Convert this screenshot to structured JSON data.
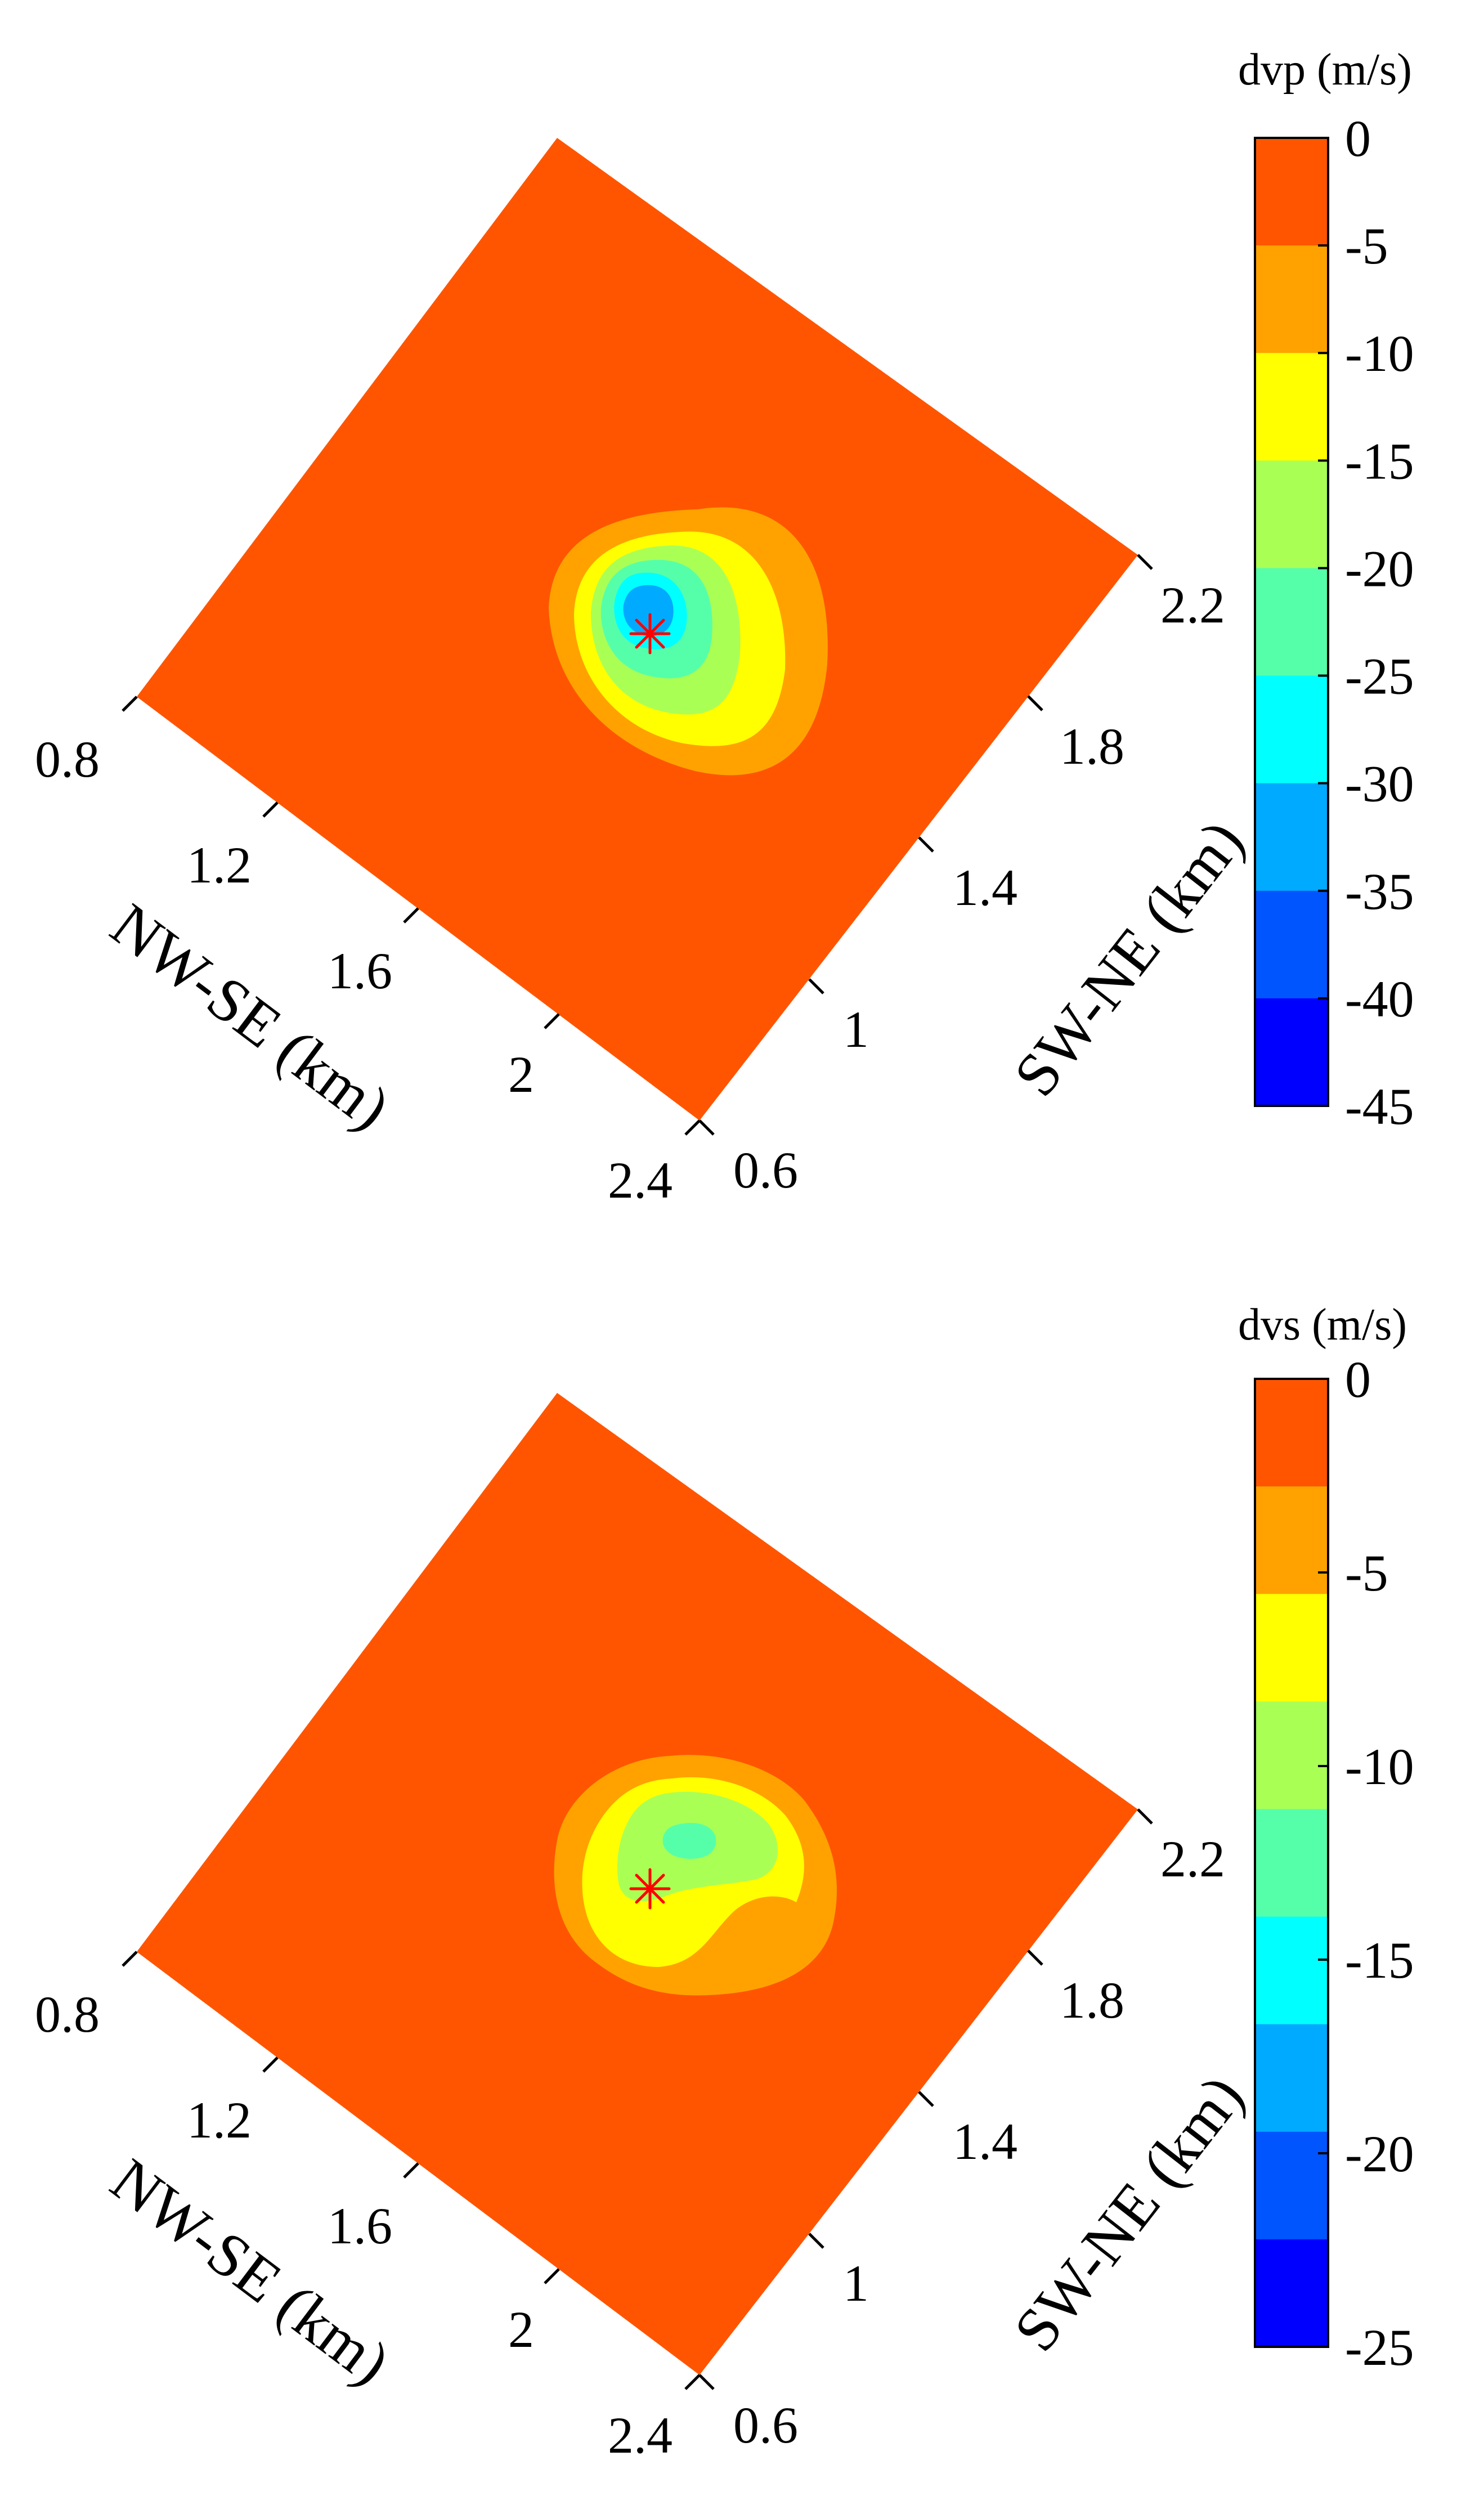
{
  "chart_data": [
    {
      "type": "heatmap",
      "title": "",
      "colorbar": {
        "title": "dvp (m/s)",
        "ticks": [
          "0",
          "-5",
          "-10",
          "-15",
          "-20",
          "-25",
          "-30",
          "-35",
          "-40",
          "-45"
        ],
        "levels": [
          0,
          -5,
          -10,
          -15,
          -20,
          -25,
          -30,
          -35,
          -40,
          -45
        ],
        "colors": [
          "#ff5500",
          "#ffa200",
          "#ffff00",
          "#aaff55",
          "#55ffaa",
          "#00ffff",
          "#00aaff",
          "#0055ff",
          "#0000ff"
        ],
        "range": [
          -45,
          0
        ]
      },
      "x_axis": {
        "label": "NW-SE (km)",
        "ticks": [
          "0.8",
          "1.2",
          "1.6",
          "2",
          "2.4"
        ],
        "range": [
          0.8,
          2.4
        ]
      },
      "y_axis": {
        "label": "SW-NE (km)",
        "ticks": [
          "0.6",
          "1",
          "1.4",
          "1.8",
          "2.2"
        ],
        "range": [
          0.6,
          2.2
        ]
      },
      "background_value_range": [
        -5,
        0
      ],
      "anomaly_minimum_range": [
        -35,
        -30
      ],
      "marker": {
        "symbol": "*",
        "color": "#ff0000"
      }
    },
    {
      "type": "heatmap",
      "title": "",
      "colorbar": {
        "title": "dvs (m/s)",
        "ticks": [
          "0",
          "-5",
          "-10",
          "-15",
          "-20",
          "-25"
        ],
        "levels": [
          0,
          -2.5,
          -5,
          -7.5,
          -10,
          -12.5,
          -15,
          -17.5,
          -20,
          -22.5,
          -25
        ],
        "colors": [
          "#ff5500",
          "#ffa200",
          "#ffff00",
          "#aaff55",
          "#55ffaa",
          "#00ffff",
          "#00aaff",
          "#0055ff",
          "#0000ff"
        ],
        "range": [
          -25,
          0
        ]
      },
      "x_axis": {
        "label": "NW-SE (km)",
        "ticks": [
          "0.8",
          "1.2",
          "1.6",
          "2",
          "2.4"
        ],
        "range": [
          0.8,
          2.4
        ]
      },
      "y_axis": {
        "label": "SW-NE (km)",
        "ticks": [
          "0.6",
          "1",
          "1.4",
          "1.8",
          "2.2"
        ],
        "range": [
          0.6,
          2.2
        ]
      },
      "background_value_range": [
        -2.5,
        0
      ],
      "anomaly_minimum_range": [
        -12.5,
        -10
      ],
      "marker": {
        "symbol": "*",
        "color": "#ff0000"
      }
    }
  ]
}
